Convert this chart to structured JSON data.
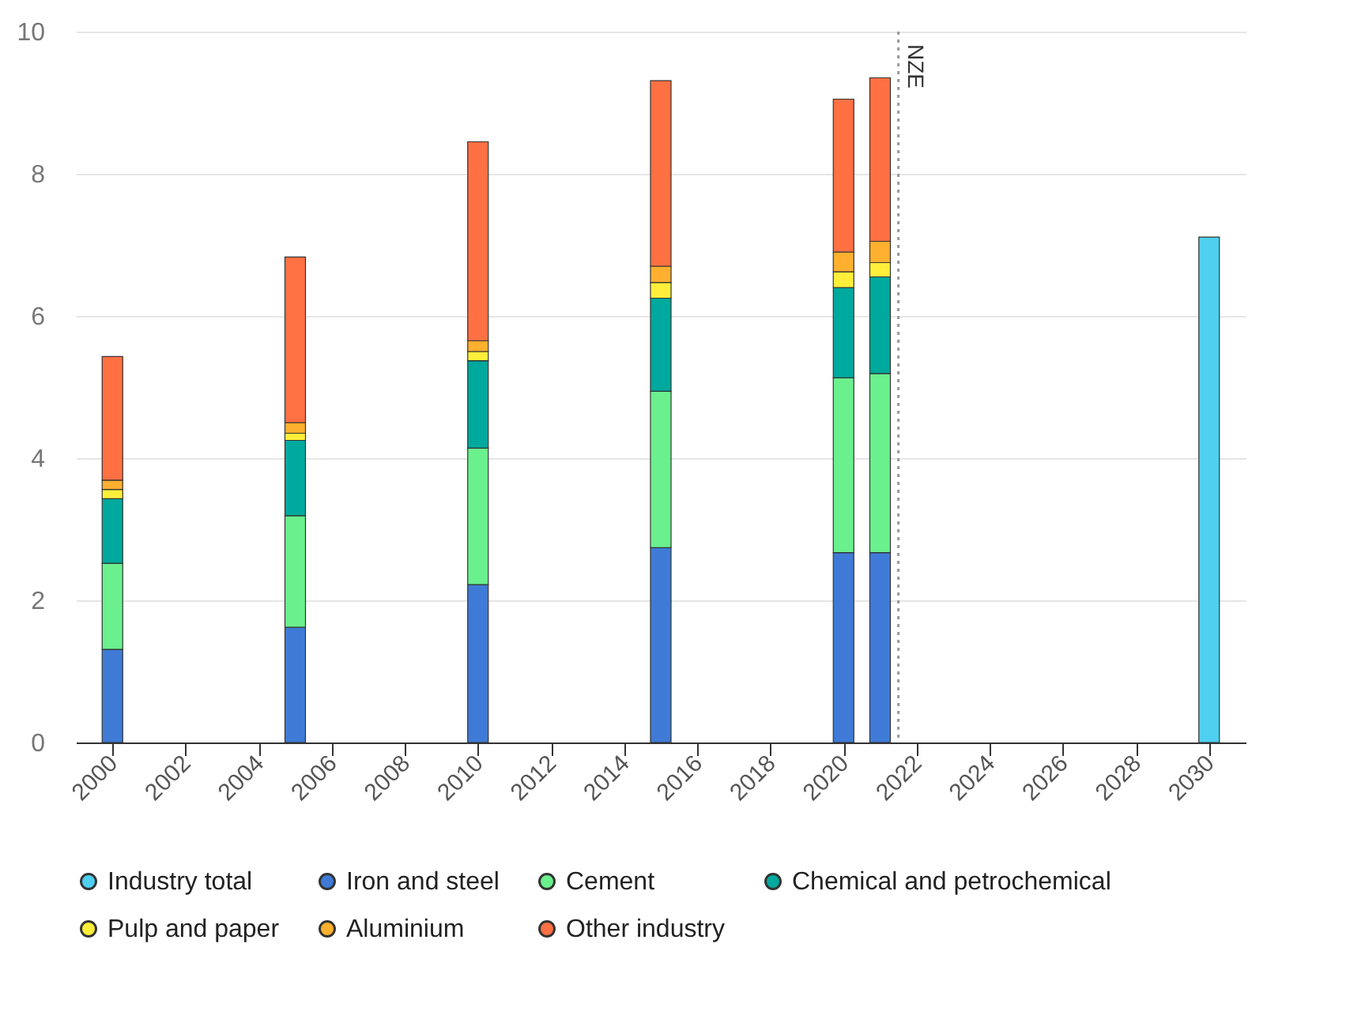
{
  "chart_data": {
    "type": "bar",
    "stacked": true,
    "x": [
      2000,
      2005,
      2010,
      2015,
      2020,
      2021,
      2030
    ],
    "series": [
      {
        "name": "Industry total",
        "color": "#4fd0f0",
        "values": [
          null,
          null,
          null,
          null,
          null,
          null,
          7.11
        ]
      },
      {
        "name": "Iron and steel",
        "color": "#3f7bd6",
        "values": [
          1.31,
          1.62,
          2.22,
          2.74,
          2.67,
          2.67,
          null
        ]
      },
      {
        "name": "Cement",
        "color": "#6bf08e",
        "values": [
          1.21,
          1.57,
          1.92,
          2.2,
          2.46,
          2.52,
          null
        ]
      },
      {
        "name": "Chemical and petrochemical",
        "color": "#00a99d",
        "values": [
          0.91,
          1.06,
          1.23,
          1.31,
          1.27,
          1.36,
          null
        ]
      },
      {
        "name": "Pulp and paper",
        "color": "#ffef3a",
        "values": [
          0.13,
          0.1,
          0.13,
          0.22,
          0.22,
          0.2,
          null
        ]
      },
      {
        "name": "Aluminium",
        "color": "#ffb02e",
        "values": [
          0.13,
          0.15,
          0.15,
          0.23,
          0.28,
          0.3,
          null
        ]
      },
      {
        "name": "Other industry",
        "color": "#ff7043",
        "values": [
          1.74,
          2.33,
          2.8,
          2.61,
          2.15,
          2.3,
          null
        ]
      }
    ],
    "xlim": [
      1999,
      2031
    ],
    "xticks": [
      2000,
      2002,
      2004,
      2006,
      2008,
      2010,
      2012,
      2014,
      2016,
      2018,
      2020,
      2022,
      2024,
      2026,
      2028,
      2030
    ],
    "ylim": [
      0,
      10
    ],
    "yticks": [
      0,
      2,
      4,
      6,
      8,
      10
    ],
    "ref_lines": [
      {
        "axis": "x",
        "value": 2021.5,
        "label": "NZE",
        "line_style": "dotted",
        "color": "#999999"
      }
    ],
    "grid": "y",
    "legend": "bottom"
  }
}
